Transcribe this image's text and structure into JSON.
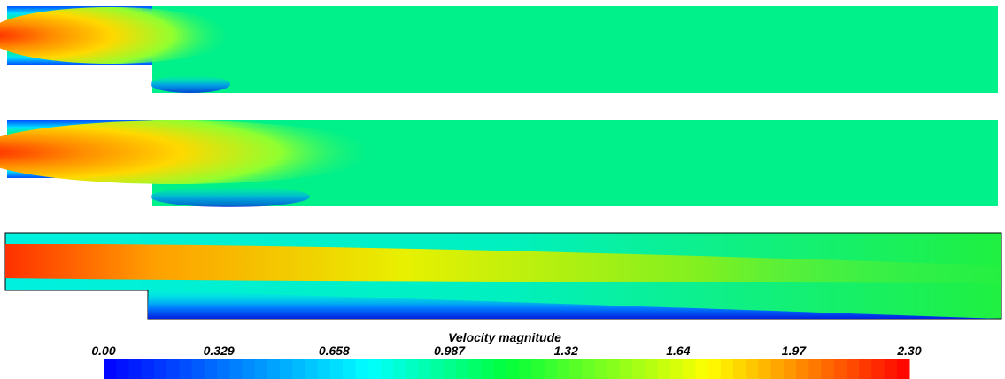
{
  "chart_data": {
    "type": "colorbar",
    "title": "Velocity magnitude",
    "xlim": [
      0,
      2.3
    ],
    "xticks": [
      {
        "value": 0,
        "label": "0.00"
      },
      0.329,
      0.658,
      0.987,
      1.32,
      1.64,
      1.97,
      {
        "value": 2.3,
        "label": "2.30"
      }
    ]
  }
}
